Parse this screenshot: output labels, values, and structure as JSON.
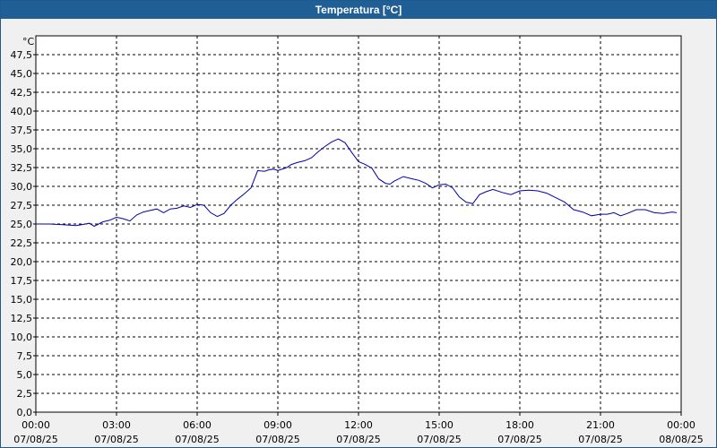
{
  "window": {
    "title": "Temperatura [°C]"
  },
  "chart_data": {
    "type": "line",
    "title": "Temperatura [°C]",
    "ylabel": "°C",
    "xlabel": "",
    "ylim": [
      0,
      50
    ],
    "yticks": [
      "0,0",
      "2,5",
      "5,0",
      "7,5",
      "10,0",
      "12,5",
      "15,0",
      "17,5",
      "20,0",
      "22,5",
      "25,0",
      "27,5",
      "30,0",
      "32,5",
      "35,0",
      "37,5",
      "40,0",
      "42,5",
      "45,0",
      "47,5"
    ],
    "xlim": [
      0,
      24
    ],
    "xticks": [
      {
        "time": "00:00",
        "date": "07/08/25"
      },
      {
        "time": "03:00",
        "date": "07/08/25"
      },
      {
        "time": "06:00",
        "date": "07/08/25"
      },
      {
        "time": "09:00",
        "date": "07/08/25"
      },
      {
        "time": "12:00",
        "date": "07/08/25"
      },
      {
        "time": "15:00",
        "date": "07/08/25"
      },
      {
        "time": "18:00",
        "date": "07/08/25"
      },
      {
        "time": "21:00",
        "date": "07/08/25"
      },
      {
        "time": "00:00",
        "date": "08/08/25"
      }
    ],
    "grid": true,
    "line_color": "#0000aa",
    "series": [
      {
        "x": [
          "00:00",
          "00:30",
          "01:00",
          "01:30",
          "02:00",
          "02:10",
          "02:30",
          "02:45",
          "03:00",
          "03:15",
          "03:30",
          "03:45",
          "04:00",
          "04:15",
          "04:30",
          "04:45",
          "05:00",
          "05:15",
          "05:30",
          "05:45",
          "06:00",
          "06:15",
          "06:30",
          "06:45",
          "07:00",
          "07:15",
          "07:30",
          "07:45",
          "08:00",
          "08:15",
          "08:30",
          "08:40",
          "08:50",
          "09:00",
          "09:20",
          "09:30",
          "09:45",
          "10:00",
          "10:15",
          "10:30",
          "10:45",
          "11:00",
          "11:15",
          "11:30",
          "11:45",
          "12:00",
          "12:15",
          "12:30",
          "12:45",
          "13:00",
          "13:10",
          "13:20",
          "13:40",
          "14:00",
          "14:15",
          "14:30",
          "14:45",
          "15:00",
          "15:15",
          "15:30",
          "15:45",
          "16:00",
          "16:15",
          "16:30",
          "16:45",
          "17:00",
          "17:20",
          "17:40",
          "18:00",
          "18:20",
          "18:40",
          "19:00",
          "19:20",
          "19:40",
          "20:00",
          "20:20",
          "20:40",
          "21:00",
          "21:15",
          "21:30",
          "21:45",
          "22:00",
          "22:20",
          "22:40",
          "23:00",
          "23:20",
          "23:40",
          "23:50"
        ],
        "y": [
          25.0,
          25.0,
          24.9,
          24.8,
          25.1,
          24.7,
          25.3,
          25.5,
          25.9,
          25.7,
          25.4,
          26.2,
          26.6,
          26.8,
          27.0,
          26.5,
          27.0,
          27.1,
          27.4,
          27.2,
          27.6,
          27.5,
          26.5,
          26.0,
          26.4,
          27.5,
          28.3,
          29.0,
          29.8,
          32.1,
          32.0,
          32.2,
          32.3,
          32.1,
          32.5,
          32.9,
          33.2,
          33.4,
          33.8,
          34.6,
          35.3,
          35.9,
          36.3,
          35.8,
          34.5,
          33.3,
          32.9,
          32.4,
          31.0,
          30.4,
          30.3,
          30.7,
          31.3,
          31.0,
          30.8,
          30.4,
          29.8,
          30.2,
          30.3,
          29.8,
          28.6,
          27.9,
          27.7,
          28.9,
          29.3,
          29.6,
          29.2,
          28.9,
          29.4,
          29.5,
          29.4,
          29.1,
          28.5,
          27.9,
          26.9,
          26.6,
          26.1,
          26.3,
          26.3,
          26.5,
          26.1,
          26.4,
          26.9,
          26.9,
          26.5,
          26.4,
          26.6,
          26.5
        ]
      }
    ]
  }
}
